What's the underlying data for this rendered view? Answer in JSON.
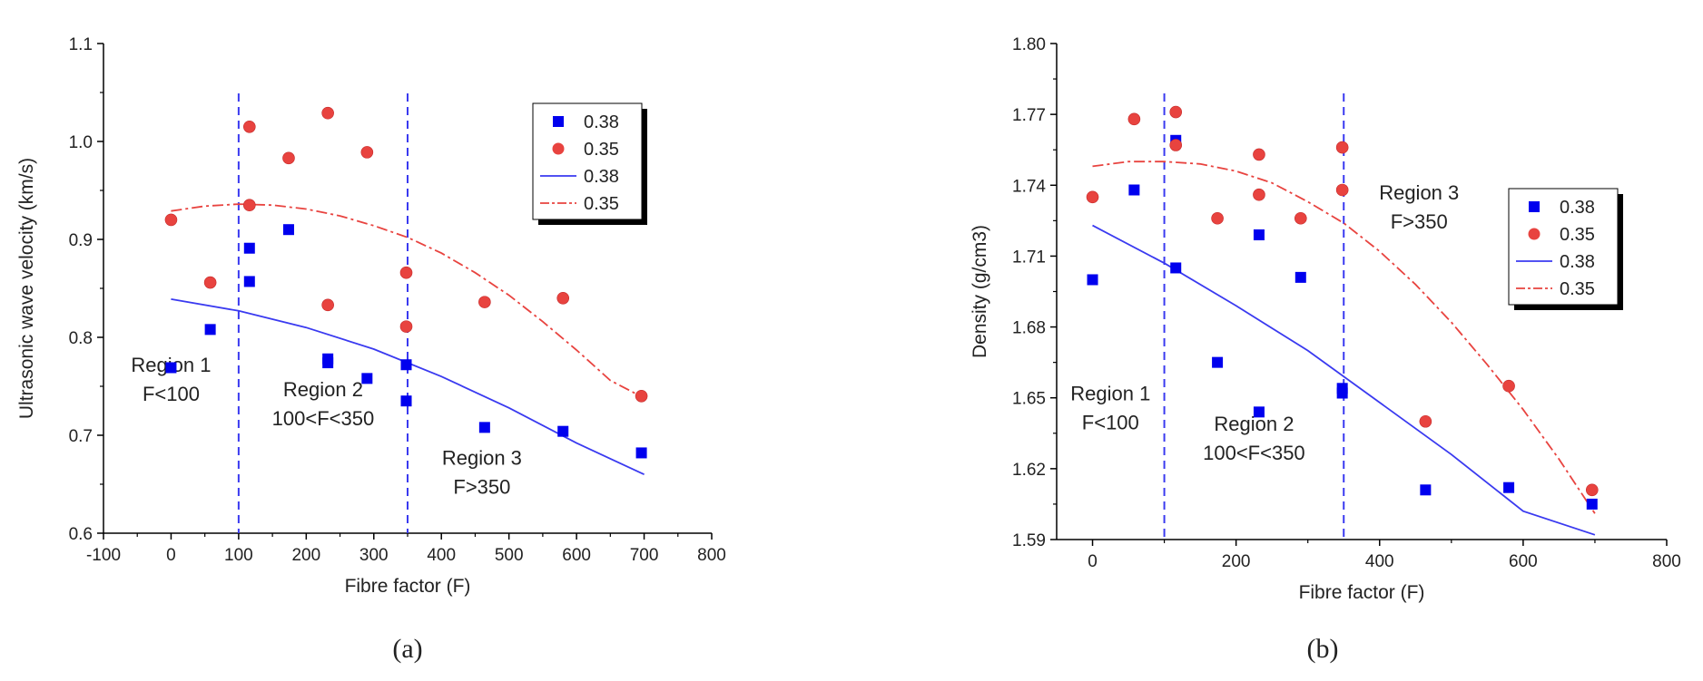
{
  "chart_data": [
    {
      "type": "scatter",
      "xlabel": "Fibre factor (F)",
      "ylabel": "Ultrasonic wave velocity (km/s)",
      "xlim": [
        -100,
        800
      ],
      "ylim": [
        0.6,
        1.1
      ],
      "xticks": [
        "-100",
        "0",
        "100",
        "200",
        "300",
        "400",
        "500",
        "600",
        "700",
        "800"
      ],
      "yticks": [
        "0.6",
        "0.7",
        "0.8",
        "0.9",
        "1.0",
        "1.1"
      ],
      "panel_label": "(a)",
      "legend_position": "top-right",
      "vlines": [
        100,
        350
      ],
      "regions": [
        {
          "lines": [
            "Region 1",
            "F<100"
          ],
          "x": 0,
          "y": 0.765
        },
        {
          "lines": [
            "Region 2",
            "100<F<350"
          ],
          "x": 225,
          "y": 0.74
        },
        {
          "lines": [
            "Region 3",
            "F>350"
          ],
          "x": 460,
          "y": 0.67
        }
      ],
      "series": [
        {
          "name": "0.38",
          "kind": "points",
          "marker": "square",
          "color": "#0000ee",
          "points": [
            [
              0,
              0.769
            ],
            [
              58,
              0.808
            ],
            [
              116,
              0.891
            ],
            [
              116,
              0.857
            ],
            [
              174,
              0.91
            ],
            [
              232,
              0.778
            ],
            [
              232,
              0.774
            ],
            [
              290,
              0.758
            ],
            [
              348,
              0.772
            ],
            [
              348,
              0.735
            ],
            [
              464,
              0.708
            ],
            [
              580,
              0.704
            ],
            [
              696,
              0.682
            ]
          ]
        },
        {
          "name": "0.35",
          "kind": "points",
          "marker": "circle",
          "color": "#e8433f",
          "points": [
            [
              0,
              0.92
            ],
            [
              58,
              0.856
            ],
            [
              116,
              1.015
            ],
            [
              116,
              0.935
            ],
            [
              174,
              0.983
            ],
            [
              232,
              1.029
            ],
            [
              232,
              0.833
            ],
            [
              290,
              0.989
            ],
            [
              348,
              0.866
            ],
            [
              348,
              0.811
            ],
            [
              464,
              0.836
            ],
            [
              580,
              0.84
            ],
            [
              696,
              0.74
            ]
          ]
        },
        {
          "name": "0.38",
          "kind": "fit",
          "style": "solid",
          "color": "#3a3af0",
          "points": [
            [
              0,
              0.839
            ],
            [
              100,
              0.827
            ],
            [
              200,
              0.81
            ],
            [
              300,
              0.788
            ],
            [
              400,
              0.76
            ],
            [
              500,
              0.728
            ],
            [
              600,
              0.692
            ],
            [
              700,
              0.66
            ]
          ]
        },
        {
          "name": "0.35",
          "kind": "fit",
          "style": "dashdot",
          "color": "#e8433f",
          "points": [
            [
              0,
              0.929
            ],
            [
              50,
              0.934
            ],
            [
              100,
              0.936
            ],
            [
              150,
              0.935
            ],
            [
              200,
              0.931
            ],
            [
              250,
              0.924
            ],
            [
              300,
              0.914
            ],
            [
              350,
              0.902
            ],
            [
              400,
              0.886
            ],
            [
              450,
              0.866
            ],
            [
              500,
              0.843
            ],
            [
              550,
              0.816
            ],
            [
              600,
              0.787
            ],
            [
              650,
              0.756
            ],
            [
              700,
              0.738
            ]
          ]
        }
      ]
    },
    {
      "type": "scatter",
      "xlabel": "Fibre factor (F)",
      "ylabel": "Density (g/cm3)",
      "xlim": [
        -50,
        800
      ],
      "ylim": [
        1.59,
        1.8
      ],
      "xticks": [
        "0",
        "200",
        "400",
        "600",
        "800"
      ],
      "yticks": [
        "1.59",
        "1.62",
        "1.65",
        "1.68",
        "1.71",
        "1.74",
        "1.77",
        "1.80"
      ],
      "panel_label": "(b)",
      "legend_position": "right",
      "vlines": [
        100,
        350
      ],
      "regions": [
        {
          "lines": [
            "Region 1",
            "F<100"
          ],
          "x": 25,
          "y": 1.649
        },
        {
          "lines": [
            "Region 2",
            "100<F<350"
          ],
          "x": 225,
          "y": 1.636
        },
        {
          "lines": [
            "Region 3",
            "F>350"
          ],
          "x": 455,
          "y": 1.734
        }
      ],
      "series": [
        {
          "name": "0.38",
          "kind": "points",
          "marker": "square",
          "color": "#0000ee",
          "points": [
            [
              0,
              1.7
            ],
            [
              58,
              1.738
            ],
            [
              116,
              1.759
            ],
            [
              116,
              1.705
            ],
            [
              174,
              1.665
            ],
            [
              232,
              1.719
            ],
            [
              232,
              1.644
            ],
            [
              290,
              1.701
            ],
            [
              348,
              1.654
            ],
            [
              348,
              1.652
            ],
            [
              464,
              1.611
            ],
            [
              580,
              1.612
            ],
            [
              696,
              1.605
            ]
          ]
        },
        {
          "name": "0.35",
          "kind": "points",
          "marker": "circle",
          "color": "#e8433f",
          "points": [
            [
              0,
              1.735
            ],
            [
              58,
              1.768
            ],
            [
              116,
              1.771
            ],
            [
              116,
              1.757
            ],
            [
              174,
              1.726
            ],
            [
              232,
              1.753
            ],
            [
              232,
              1.736
            ],
            [
              290,
              1.726
            ],
            [
              348,
              1.756
            ],
            [
              348,
              1.738
            ],
            [
              464,
              1.64
            ],
            [
              580,
              1.655
            ],
            [
              696,
              1.611
            ]
          ]
        },
        {
          "name": "0.38",
          "kind": "fit",
          "style": "solid",
          "color": "#3a3af0",
          "points": [
            [
              0,
              1.723
            ],
            [
              100,
              1.707
            ],
            [
              200,
              1.689
            ],
            [
              300,
              1.67
            ],
            [
              400,
              1.648
            ],
            [
              500,
              1.626
            ],
            [
              600,
              1.602
            ],
            [
              700,
              1.592
            ]
          ]
        },
        {
          "name": "0.35",
          "kind": "fit",
          "style": "dashdot",
          "color": "#e8433f",
          "points": [
            [
              0,
              1.748
            ],
            [
              50,
              1.75
            ],
            [
              100,
              1.75
            ],
            [
              150,
              1.749
            ],
            [
              200,
              1.746
            ],
            [
              250,
              1.741
            ],
            [
              300,
              1.733
            ],
            [
              350,
              1.724
            ],
            [
              400,
              1.712
            ],
            [
              450,
              1.698
            ],
            [
              500,
              1.682
            ],
            [
              550,
              1.664
            ],
            [
              600,
              1.645
            ],
            [
              650,
              1.624
            ],
            [
              700,
              1.601
            ]
          ]
        }
      ]
    }
  ]
}
